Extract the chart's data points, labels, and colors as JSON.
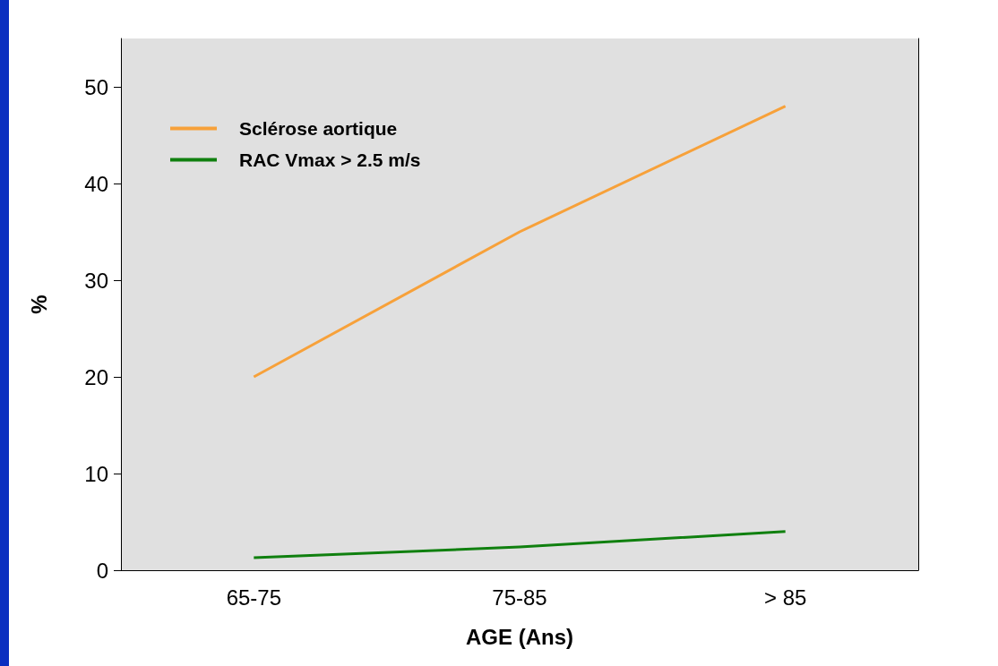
{
  "chart_data": {
    "type": "line",
    "xlabel": "AGE (Ans)",
    "ylabel": "%",
    "categories": [
      "65-75",
      "75-85",
      "> 85"
    ],
    "series": [
      {
        "name": "Sclérose aortique",
        "color": "#f7a13a",
        "values": [
          20,
          35,
          48
        ]
      },
      {
        "name": "RAC Vmax > 2.5 m/s",
        "color": "#10800f",
        "values": [
          1.3,
          2.4,
          4
        ]
      }
    ],
    "ylim": [
      0,
      55
    ],
    "yticks": [
      0,
      10,
      20,
      30,
      40,
      50
    ],
    "grid": false,
    "legend": "top left",
    "marker": "none",
    "line_style": "solid"
  }
}
